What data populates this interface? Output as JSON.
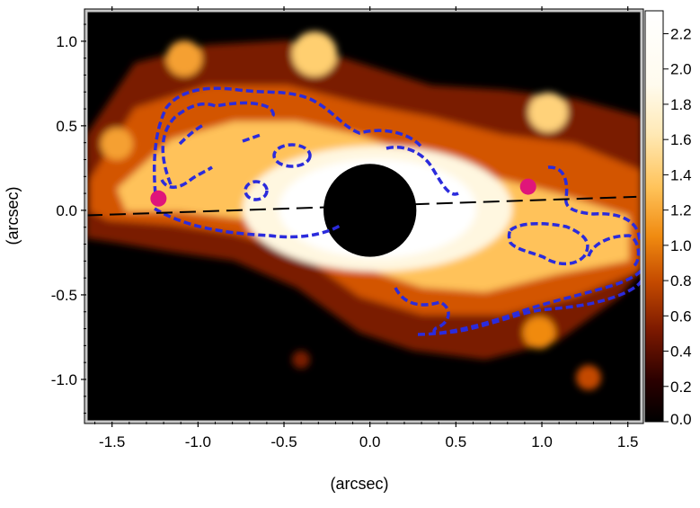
{
  "chart_data": {
    "type": "heatmap",
    "xlabel": "(arcsec)",
    "ylabel": "(arcsec)",
    "xlim": [
      -1.65,
      1.58
    ],
    "ylim": [
      -1.25,
      1.18
    ],
    "x_ticks": [
      -1.5,
      -1.0,
      -0.5,
      0.0,
      0.5,
      1.0,
      1.5
    ],
    "x_tick_labels": [
      "-1.5",
      "-1.0",
      "-0.5",
      "0.0",
      "0.5",
      "1.0",
      "1.5"
    ],
    "y_ticks": [
      1.0,
      0.5,
      0.0,
      -0.5,
      -1.0
    ],
    "y_tick_labels": [
      "1.0",
      "0.5",
      "0.0",
      "-0.5",
      "-1.0"
    ],
    "colormap": "afmhot",
    "colorbar": {
      "ticks": [
        2.2,
        2.0,
        1.8,
        1.6,
        1.4,
        1.2,
        1.0,
        0.8,
        0.6,
        0.4,
        0.2,
        0.0
      ],
      "tick_labels": [
        "2.2",
        "2.0",
        "1.8",
        "1.6",
        "1.4",
        "1.2",
        "1.0",
        "0.8",
        "0.6",
        "0.4",
        "0.2",
        "0.0"
      ],
      "range": [
        0.0,
        2.33
      ]
    },
    "occulting_mask": {
      "center": [
        0.0,
        0.0
      ],
      "radius_arcsec": 0.27
    },
    "disk_position_angle_line": {
      "x": [
        -1.65,
        1.55
      ],
      "y": [
        -0.03,
        0.08
      ],
      "color": "#000000",
      "style": "dashed"
    },
    "markers": [
      {
        "x": -1.23,
        "y": 0.07,
        "color": "#e0157a"
      },
      {
        "x": 0.92,
        "y": 0.14,
        "color": "#e0157a"
      }
    ],
    "contour_color": "#2b2bdc",
    "colors": {
      "plot_background": "#000000",
      "frame": "#c8c8c8",
      "contour": "#2b2bdc",
      "marker": "#e0157a"
    }
  }
}
